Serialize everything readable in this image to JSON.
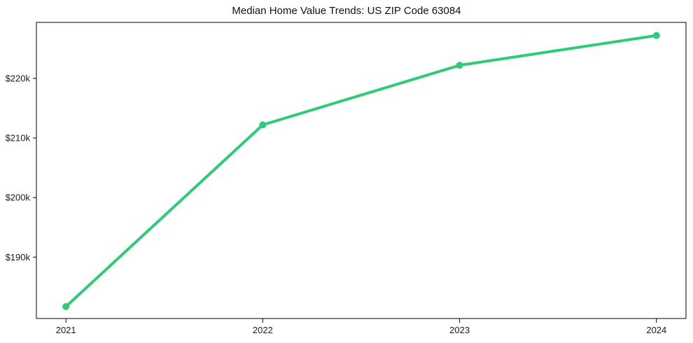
{
  "chart_data": {
    "type": "line",
    "title": "Median Home Value Trends: US ZIP Code 63084",
    "x": [
      2021,
      2022,
      2023,
      2024
    ],
    "x_tick_labels": [
      "2021",
      "2022",
      "2023",
      "2024"
    ],
    "series": [
      {
        "name": "median-home-value",
        "values": [
          181700,
          212200,
          222200,
          227200
        ],
        "color": "#2fcb76",
        "marker": "circle"
      }
    ],
    "y_ticks": [
      190000,
      200000,
      210000,
      220000
    ],
    "y_tick_labels": [
      "$190k",
      "$200k",
      "$210k",
      "$220k"
    ],
    "xlim": [
      2020.85,
      2024.15
    ],
    "ylim": [
      179700,
      229400
    ],
    "xlabel": "",
    "ylabel": "",
    "grid": false,
    "legend": "none",
    "axis_color": "#000000",
    "text_color": "#1a1a1a",
    "background": "#ffffff"
  }
}
